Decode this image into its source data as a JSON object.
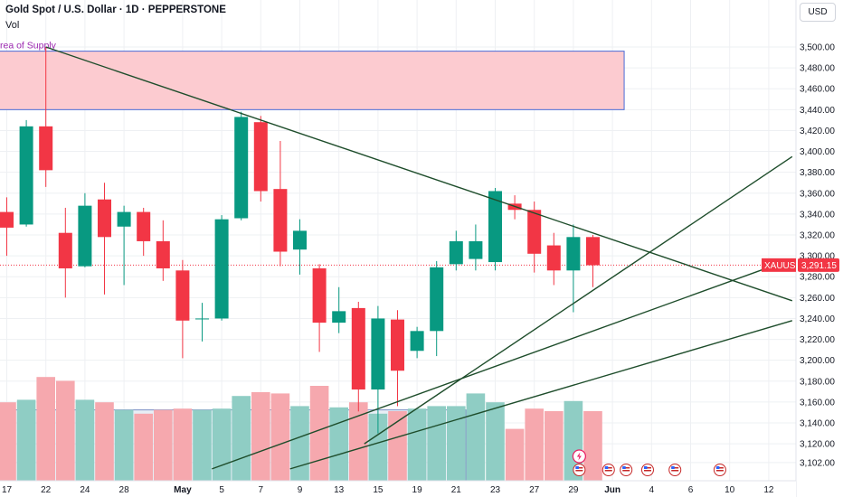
{
  "header": {
    "title": "Gold Spot / U.S. Dollar · 1D · PEPPERSTONE",
    "volume_label": "Vol",
    "currency": "USD"
  },
  "colors": {
    "up": "#089981",
    "down": "#f23645",
    "up_volume": "#8fcdc4",
    "down_volume": "#f6a8ae",
    "trendline": "#1e4d2b",
    "supply_fill": "#fccbd0",
    "supply_border": "#4a6bd6",
    "price_tag": "#f23645"
  },
  "annotations": {
    "supply_zone_label": "Area of Supply",
    "symbol_tag": "XAUUSD",
    "last_price": "3,291.15"
  },
  "chart_data": {
    "type": "candlestick",
    "y_ticks": [
      3102,
      3120,
      3140,
      3160,
      3180,
      3200,
      3220,
      3240,
      3260,
      3280,
      3300,
      3320,
      3340,
      3360,
      3380,
      3400,
      3420,
      3440,
      3460,
      3480,
      3500
    ],
    "y_tick_labels": [
      "3,102.00",
      "3,120.00",
      "3,140.00",
      "3,160.00",
      "3,180.00",
      "3,200.00",
      "3,220.00",
      "3,240.00",
      "3,260.00",
      "3,280.00",
      "3,300.00",
      "3,320.00",
      "3,340.00",
      "3,360.00",
      "3,380.00",
      "3,400.00",
      "3,420.00",
      "3,440.00",
      "3,460.00",
      "3,480.00",
      "3,500.00"
    ],
    "ylim": [
      3096,
      3522
    ],
    "x_labels": [
      {
        "label": "17",
        "idx": 0,
        "bold": false
      },
      {
        "label": "22",
        "idx": 2,
        "bold": false
      },
      {
        "label": "24",
        "idx": 4,
        "bold": false
      },
      {
        "label": "28",
        "idx": 6,
        "bold": false
      },
      {
        "label": "May",
        "idx": 9,
        "bold": true
      },
      {
        "label": "5",
        "idx": 11,
        "bold": false
      },
      {
        "label": "7",
        "idx": 13,
        "bold": false
      },
      {
        "label": "9",
        "idx": 15,
        "bold": false
      },
      {
        "label": "13",
        "idx": 17,
        "bold": false
      },
      {
        "label": "15",
        "idx": 19,
        "bold": false
      },
      {
        "label": "19",
        "idx": 21,
        "bold": false
      },
      {
        "label": "21",
        "idx": 23,
        "bold": false
      },
      {
        "label": "23",
        "idx": 25,
        "bold": false
      },
      {
        "label": "27",
        "idx": 27,
        "bold": false
      },
      {
        "label": "29",
        "idx": 29,
        "bold": false
      },
      {
        "label": "Jun",
        "idx": 31,
        "bold": true
      },
      {
        "label": "4",
        "idx": 33,
        "bold": false
      },
      {
        "label": "6",
        "idx": 35,
        "bold": false
      },
      {
        "label": "10",
        "idx": 37,
        "bold": false
      },
      {
        "label": "12",
        "idx": 39,
        "bold": false
      }
    ],
    "candles": [
      {
        "o": 3342,
        "h": 3356,
        "l": 3300,
        "c": 3327,
        "v": 0.62
      },
      {
        "o": 3330,
        "h": 3430,
        "l": 3328,
        "c": 3424,
        "v": 0.64
      },
      {
        "o": 3424,
        "h": 3500,
        "l": 3366,
        "c": 3382,
        "v": 0.82
      },
      {
        "o": 3322,
        "h": 3346,
        "l": 3260,
        "c": 3288,
        "v": 0.79
      },
      {
        "o": 3290,
        "h": 3360,
        "l": 3289,
        "c": 3348,
        "v": 0.64
      },
      {
        "o": 3354,
        "h": 3370,
        "l": 3263,
        "c": 3318,
        "v": 0.62
      },
      {
        "o": 3328,
        "h": 3348,
        "l": 3272,
        "c": 3342,
        "v": 0.56
      },
      {
        "o": 3342,
        "h": 3346,
        "l": 3300,
        "c": 3314,
        "v": 0.53
      },
      {
        "o": 3314,
        "h": 3334,
        "l": 3276,
        "c": 3288,
        "v": 0.56
      },
      {
        "o": 3286,
        "h": 3296,
        "l": 3202,
        "c": 3238,
        "v": 0.57
      },
      {
        "o": 3240,
        "h": 3255,
        "l": 3218,
        "c": 3240,
        "v": 0.56
      },
      {
        "o": 3240,
        "h": 3339,
        "l": 3238,
        "c": 3335,
        "v": 0.57
      },
      {
        "o": 3336,
        "h": 3438,
        "l": 3334,
        "c": 3433,
        "v": 0.67
      },
      {
        "o": 3428,
        "h": 3434,
        "l": 3352,
        "c": 3362,
        "v": 0.7
      },
      {
        "o": 3364,
        "h": 3410,
        "l": 3290,
        "c": 3304,
        "v": 0.69
      },
      {
        "o": 3306,
        "h": 3335,
        "l": 3282,
        "c": 3324,
        "v": 0.59
      },
      {
        "o": 3288,
        "h": 3292,
        "l": 3208,
        "c": 3236,
        "v": 0.75
      },
      {
        "o": 3236,
        "h": 3270,
        "l": 3226,
        "c": 3247,
        "v": 0.58
      },
      {
        "o": 3250,
        "h": 3256,
        "l": 3151,
        "c": 3172,
        "v": 0.62
      },
      {
        "o": 3172,
        "h": 3252,
        "l": 3130,
        "c": 3240,
        "v": 0.53
      },
      {
        "o": 3239,
        "h": 3248,
        "l": 3156,
        "c": 3190,
        "v": 0.55
      },
      {
        "o": 3209,
        "h": 3232,
        "l": 3202,
        "c": 3228,
        "v": 0.57
      },
      {
        "o": 3228,
        "h": 3295,
        "l": 3204,
        "c": 3289,
        "v": 0.59
      },
      {
        "o": 3292,
        "h": 3324,
        "l": 3286,
        "c": 3314,
        "v": 0.59
      },
      {
        "o": 3297,
        "h": 3330,
        "l": 3286,
        "c": 3314,
        "v": 0.69
      },
      {
        "o": 3294,
        "h": 3365,
        "l": 3286,
        "c": 3362,
        "v": 0.62
      },
      {
        "o": 3350,
        "h": 3358,
        "l": 3335,
        "c": 3344,
        "v": 0.41
      },
      {
        "o": 3344,
        "h": 3352,
        "l": 3284,
        "c": 3302,
        "v": 0.57
      },
      {
        "o": 3310,
        "h": 3322,
        "l": 3272,
        "c": 3286,
        "v": 0.55
      },
      {
        "o": 3286,
        "h": 3330,
        "l": 3246,
        "c": 3318,
        "v": 0.63
      },
      {
        "o": 3318,
        "h": 3320,
        "l": 3270,
        "c": 3291,
        "v": 0.55
      }
    ],
    "supply_zone": {
      "top": 3496,
      "bottom": 3440,
      "from_idx": -1.5,
      "to_idx": 31.6
    },
    "volume_box": {
      "from_idx": -1.5,
      "to_idx": 23.5,
      "top_frac": 0.56,
      "bottom_frac": 0.0
    },
    "trendlines": [
      {
        "x1": 2,
        "y1": 3500,
        "x2": 40.2,
        "y2": 3257
      },
      {
        "x1": 18.3,
        "y1": 3120,
        "x2": 40.2,
        "y2": 3395
      },
      {
        "x1": 10.5,
        "y1": 3096,
        "x2": 40.2,
        "y2": 3297
      },
      {
        "x1": 14.5,
        "y1": 3096,
        "x2": 40.2,
        "y2": 3238
      }
    ],
    "last_close": 3291.15
  }
}
